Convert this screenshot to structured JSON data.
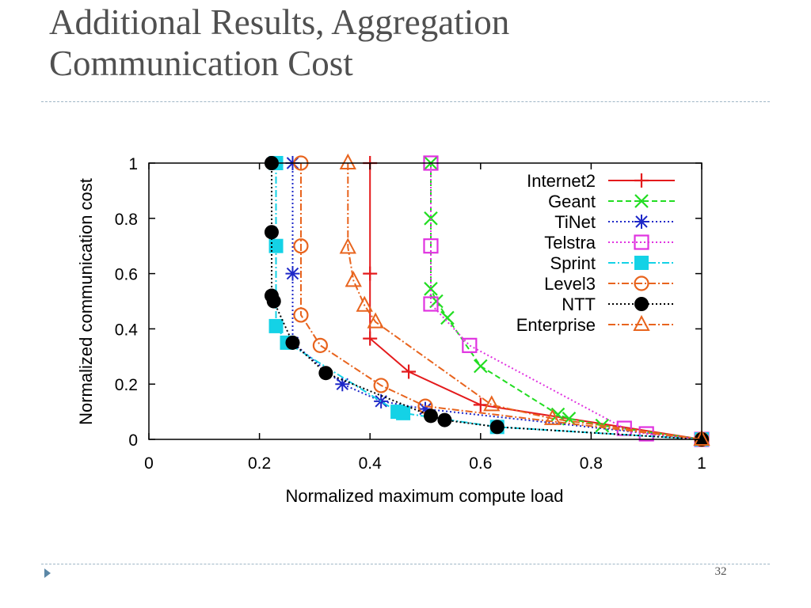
{
  "slide": {
    "title": "Additional Results,  Aggregation\nCommunication Cost",
    "page_number": "32"
  },
  "chart_data": {
    "type": "line",
    "xlabel": "Normalized maximum compute load",
    "ylabel": "Normalized communication cost",
    "xlim": [
      0,
      1
    ],
    "ylim": [
      0,
      1
    ],
    "x_ticks": [
      "0",
      "0.2",
      "0.4",
      "0.6",
      "0.8",
      "1"
    ],
    "y_ticks": [
      "0",
      "0.2",
      "0.4",
      "0.6",
      "0.8",
      "1"
    ],
    "grid": false,
    "legend_position": "top-right",
    "series": [
      {
        "name": "Internet2",
        "color": "#e41a1c",
        "dash": "solid",
        "marker": "plus",
        "x": [
          0.4,
          0.4,
          0.4,
          0.47,
          0.6,
          1.0
        ],
        "y": [
          1.0,
          0.6,
          0.365,
          0.245,
          0.125,
          0.0
        ]
      },
      {
        "name": "Geant",
        "color": "#22dd22",
        "dash": "dashed",
        "marker": "x",
        "x": [
          0.51,
          0.51,
          0.51,
          0.52,
          0.54,
          0.6,
          0.74,
          0.76,
          0.82,
          1.0
        ],
        "y": [
          1.0,
          0.8,
          0.545,
          0.5,
          0.44,
          0.265,
          0.09,
          0.075,
          0.05,
          0.0
        ]
      },
      {
        "name": "TiNet",
        "color": "#1e28c8",
        "dash": "dotted",
        "marker": "asterisk",
        "x": [
          0.26,
          0.26,
          0.26,
          0.35,
          0.42,
          0.5,
          1.0
        ],
        "y": [
          1.0,
          0.6,
          0.35,
          0.2,
          0.138,
          0.11,
          0.0
        ]
      },
      {
        "name": "Telstra",
        "color": "#e033e0",
        "dash": "dotted",
        "marker": "square-open",
        "x": [
          0.51,
          0.51,
          0.51,
          0.58,
          0.86,
          0.9,
          1.0
        ],
        "y": [
          1.0,
          0.7,
          0.49,
          0.34,
          0.04,
          0.02,
          0.0
        ]
      },
      {
        "name": "Sprint",
        "color": "#14d2e6",
        "dash": "dashdot",
        "marker": "square-filled",
        "x": [
          0.23,
          0.23,
          0.23,
          0.25,
          0.45,
          0.46,
          0.63,
          1.0
        ],
        "y": [
          1.0,
          0.7,
          0.41,
          0.35,
          0.1,
          0.095,
          0.045,
          0.0
        ]
      },
      {
        "name": "Level3",
        "color": "#e8641e",
        "dash": "dashdot",
        "marker": "circle-open",
        "x": [
          0.275,
          0.275,
          0.275,
          0.31,
          0.42,
          0.5,
          1.0
        ],
        "y": [
          1.0,
          0.7,
          0.45,
          0.34,
          0.195,
          0.12,
          0.0
        ]
      },
      {
        "name": "NTT",
        "color": "#000000",
        "dash": "dotted",
        "marker": "circle-filled",
        "x": [
          0.222,
          0.222,
          0.222,
          0.226,
          0.26,
          0.32,
          0.51,
          0.535,
          0.63,
          1.0
        ],
        "y": [
          1.0,
          0.75,
          0.52,
          0.5,
          0.35,
          0.24,
          0.085,
          0.07,
          0.045,
          0.0
        ]
      },
      {
        "name": "Enterprise",
        "color": "#e8641e",
        "dash": "dashdot",
        "marker": "triangle-open",
        "x": [
          0.36,
          0.36,
          0.37,
          0.39,
          0.41,
          0.62,
          0.73,
          1.0
        ],
        "y": [
          1.0,
          0.695,
          0.575,
          0.485,
          0.425,
          0.125,
          0.075,
          0.0
        ]
      }
    ]
  }
}
